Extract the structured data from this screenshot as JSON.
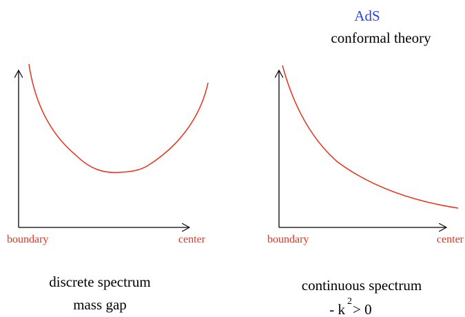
{
  "header": {
    "title": "AdS",
    "subtitle": "conformal theory"
  },
  "panels": [
    {
      "x_start": "boundary",
      "x_end": "center",
      "caption": [
        "discrete spectrum",
        "mass gap"
      ]
    },
    {
      "x_start": "boundary",
      "x_end": "center",
      "caption": [
        "continuous spectrum"
      ],
      "formula": {
        "base": "- k",
        "sup": "2",
        "rest": "> 0"
      }
    }
  ]
}
